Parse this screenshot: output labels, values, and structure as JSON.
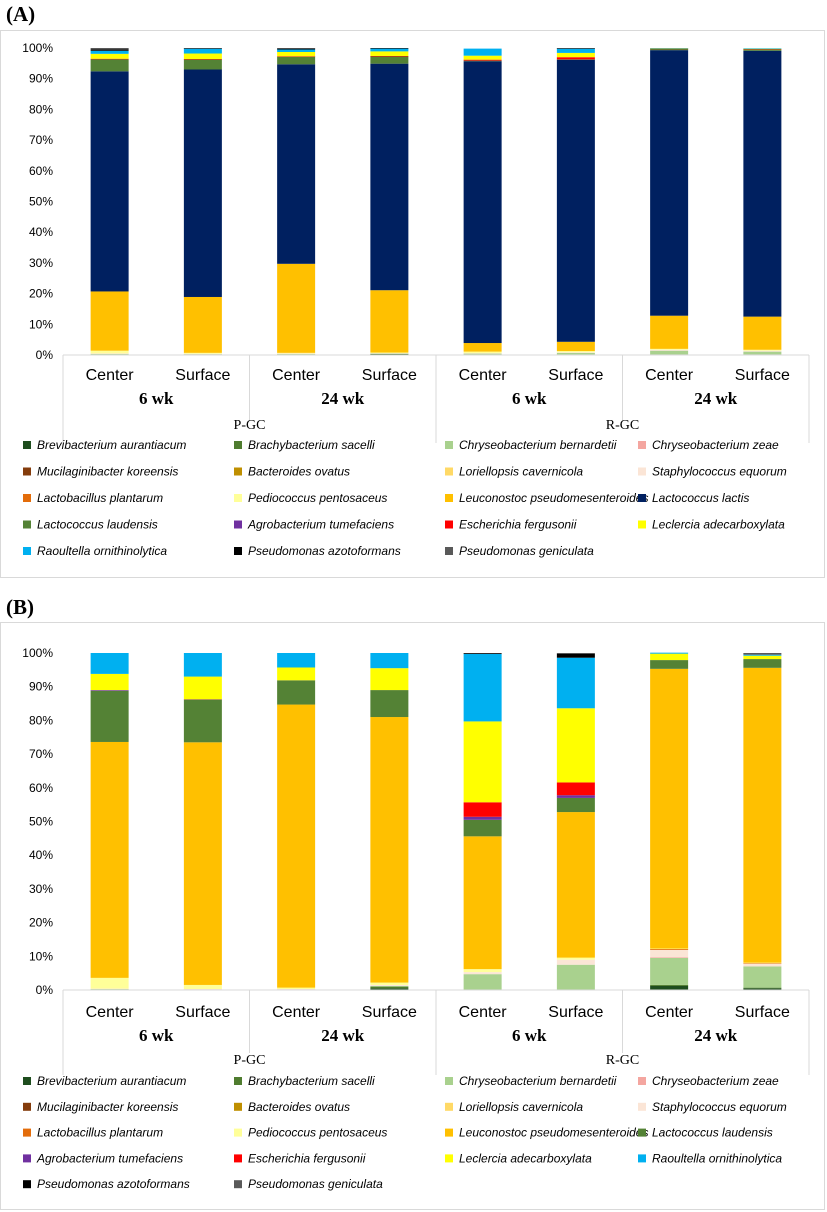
{
  "panels": {
    "a": {
      "label": "(A)"
    },
    "b": {
      "label": "(B)"
    }
  },
  "chart_data": [
    {
      "type": "bar",
      "stacked": true,
      "panel": "(A)",
      "yticks": [
        "0%",
        "10%",
        "20%",
        "30%",
        "40%",
        "50%",
        "60%",
        "70%",
        "80%",
        "90%",
        "100%"
      ],
      "ylim": [
        0,
        100
      ],
      "categories": [
        "Center",
        "Surface",
        "Center",
        "Surface",
        "Center",
        "Surface",
        "Center",
        "Surface"
      ],
      "weeks": [
        "6 wk",
        "24 wk",
        "6 wk",
        "24 wk"
      ],
      "groups": [
        "P-GC",
        "R-GC"
      ],
      "series": [
        {
          "name": "Brevibacterium aurantiacum",
          "color": "#1e4d1e",
          "values": [
            0.1,
            0.1,
            0.1,
            0.3,
            0.1,
            0.1,
            0.1,
            0.1
          ]
        },
        {
          "name": "Brachybacterium sacelli",
          "color": "#4f7c2f",
          "values": [
            0.1,
            0.1,
            0.1,
            0.1,
            0.1,
            0.1,
            0.1,
            0.1
          ]
        },
        {
          "name": "Chryseobacterium bernardetii",
          "color": "#a9d18e",
          "values": [
            0.2,
            0.1,
            0.1,
            0.1,
            0.3,
            0.5,
            1.2,
            0.9
          ]
        },
        {
          "name": "Chryseobacterium zeae",
          "color": "#f4a6a0",
          "values": [
            0,
            0,
            0,
            0,
            0,
            0,
            0,
            0
          ]
        },
        {
          "name": "Mucilaginibacter koreensis",
          "color": "#843c0c",
          "values": [
            0,
            0,
            0,
            0,
            0,
            0,
            0,
            0
          ]
        },
        {
          "name": "Bacteroides ovatus",
          "color": "#bf8f00",
          "values": [
            0,
            0,
            0,
            0,
            0,
            0,
            0,
            0
          ]
        },
        {
          "name": "Loriellopsis cavernicola",
          "color": "#ffd966",
          "values": [
            0,
            0,
            0,
            0,
            0,
            0,
            0,
            0
          ]
        },
        {
          "name": "Staphylococcus equorum",
          "color": "#fbe5d6",
          "values": [
            0.1,
            0.1,
            0.2,
            0.1,
            0.1,
            0.2,
            0.3,
            0.3
          ]
        },
        {
          "name": "Lactobacillus plantarum",
          "color": "#e36c0a",
          "values": [
            0,
            0,
            0,
            0,
            0,
            0,
            0,
            0
          ]
        },
        {
          "name": "Pediococcus pentosaceus",
          "color": "#ffff99",
          "values": [
            0.9,
            0.3,
            0.2,
            0.2,
            0.5,
            0.4,
            0.3,
            0.3
          ]
        },
        {
          "name": "Leuconostoc pseudomesenteroides",
          "color": "#ffc000",
          "values": [
            19.3,
            18.2,
            29.0,
            20.3,
            2.8,
            3.0,
            10.8,
            10.8
          ]
        },
        {
          "name": "Lactococcus lactis",
          "color": "#002060",
          "values": [
            71.7,
            74.1,
            65.0,
            73.8,
            91.8,
            91.9,
            86.5,
            86.6
          ]
        },
        {
          "name": "Lactococcus laudensis",
          "color": "#548235",
          "values": [
            4.0,
            3.3,
            2.5,
            2.4,
            0.2,
            0.1,
            0.4,
            0.5
          ]
        },
        {
          "name": "Agrobacterium tumefaciens",
          "color": "#7030a0",
          "values": [
            0,
            0,
            0,
            0,
            0,
            0,
            0,
            0
          ]
        },
        {
          "name": "Escherichia fergusonii",
          "color": "#ff0000",
          "values": [
            0.1,
            0.1,
            0.1,
            0.1,
            0.3,
            0.7,
            0.1,
            0.1
          ]
        },
        {
          "name": "Leclercia adecarboxylata",
          "color": "#ffff00",
          "values": [
            1.6,
            1.8,
            1.4,
            1.5,
            1.3,
            1.4,
            0.1,
            0.1
          ]
        },
        {
          "name": "Raoultella ornithinolytica",
          "color": "#00b0f0",
          "values": [
            1.0,
            1.6,
            0.8,
            0.9,
            2.3,
            1.4,
            0.1,
            0.1
          ]
        },
        {
          "name": "Pseudomonas azotoformans",
          "color": "#000000",
          "values": [
            0.4,
            0.1,
            0.3,
            0.2,
            0,
            0.1,
            0,
            0
          ]
        },
        {
          "name": "Pseudomonas geniculata",
          "color": "#595959",
          "values": [
            0.5,
            0.1,
            0.2,
            0.0,
            0,
            0.1,
            0,
            0
          ]
        }
      ]
    },
    {
      "type": "bar",
      "stacked": true,
      "panel": "(B)",
      "yticks": [
        "0%",
        "10%",
        "20%",
        "30%",
        "40%",
        "50%",
        "60%",
        "70%",
        "80%",
        "90%",
        "100%"
      ],
      "ylim": [
        0,
        100
      ],
      "categories": [
        "Center",
        "Surface",
        "Center",
        "Surface",
        "Center",
        "Surface",
        "Center",
        "Surface"
      ],
      "weeks": [
        "6 wk",
        "24 wk",
        "6 wk",
        "24 wk"
      ],
      "groups": [
        "P-GC",
        "R-GC"
      ],
      "series": [
        {
          "name": "Brevibacterium aurantiacum",
          "color": "#1e4d1e",
          "values": [
            0,
            0,
            0,
            0.5,
            0,
            0,
            1.2,
            0.5
          ]
        },
        {
          "name": "Brachybacterium sacelli",
          "color": "#4f7c2f",
          "values": [
            0,
            0,
            0,
            0.5,
            0,
            0,
            0.3,
            0.2
          ]
        },
        {
          "name": "Chryseobacterium bernardetii",
          "color": "#a9d18e",
          "values": [
            0.3,
            0.2,
            0.2,
            0.2,
            4.7,
            7.5,
            8.0,
            6.3
          ]
        },
        {
          "name": "Chryseobacterium zeae",
          "color": "#f4a6a0",
          "values": [
            0,
            0,
            0,
            0,
            0,
            0,
            0.2,
            0
          ]
        },
        {
          "name": "Mucilaginibacter koreensis",
          "color": "#843c0c",
          "values": [
            0,
            0,
            0,
            0,
            0,
            0,
            0,
            0
          ]
        },
        {
          "name": "Bacteroides ovatus",
          "color": "#bf8f00",
          "values": [
            0,
            0,
            0,
            0,
            0,
            0,
            0,
            0
          ]
        },
        {
          "name": "Loriellopsis cavernicola",
          "color": "#ffd966",
          "values": [
            0,
            0,
            0,
            0,
            0,
            0,
            0,
            0
          ]
        },
        {
          "name": "Staphylococcus equorum",
          "color": "#fbe5d6",
          "values": [
            0.1,
            0.1,
            0.1,
            0.3,
            0.6,
            1.5,
            2.2,
            0.8
          ]
        },
        {
          "name": "Lactobacillus plantarum",
          "color": "#e36c0a",
          "values": [
            0,
            0,
            0,
            0,
            0,
            0,
            0.3,
            0.2
          ]
        },
        {
          "name": "Pediococcus pentosaceus",
          "color": "#ffff99",
          "values": [
            3.2,
            1.2,
            0.4,
            0.7,
            0.9,
            0.6,
            0.1,
            0.1
          ]
        },
        {
          "name": "Leuconostoc pseudomesenteroides",
          "color": "#ffc000",
          "values": [
            70.0,
            72.0,
            84.0,
            78.8,
            39.4,
            43.2,
            83.0,
            87.5
          ]
        },
        {
          "name": "Lactococcus laudensis",
          "color": "#548235",
          "values": [
            15.2,
            12.6,
            7.2,
            8.0,
            4.9,
            4.2,
            2.6,
            2.6
          ]
        },
        {
          "name": "Agrobacterium tumefaciens",
          "color": "#7030a0",
          "values": [
            0.2,
            0.1,
            0,
            0,
            0.9,
            0.8,
            0,
            0
          ]
        },
        {
          "name": "Escherichia fergusonii",
          "color": "#ff0000",
          "values": [
            0,
            0,
            0,
            0,
            4.3,
            3.8,
            0,
            0
          ]
        },
        {
          "name": "Leclercia adecarboxylata",
          "color": "#ffff00",
          "values": [
            4.8,
            6.8,
            3.8,
            6.5,
            24.0,
            22.0,
            1.9,
            1.0
          ]
        },
        {
          "name": "Raoultella ornithinolytica",
          "color": "#00b0f0",
          "values": [
            6.2,
            7.0,
            4.3,
            4.5,
            20.0,
            15.0,
            0.3,
            0.3
          ]
        },
        {
          "name": "Pseudomonas azotoformans",
          "color": "#000000",
          "values": [
            0,
            0,
            0,
            0,
            0.2,
            1.2,
            0,
            0
          ]
        },
        {
          "name": "Pseudomonas geniculata",
          "color": "#595959",
          "values": [
            0,
            0,
            0,
            0,
            0.1,
            0.2,
            0,
            0.5
          ]
        }
      ]
    }
  ]
}
